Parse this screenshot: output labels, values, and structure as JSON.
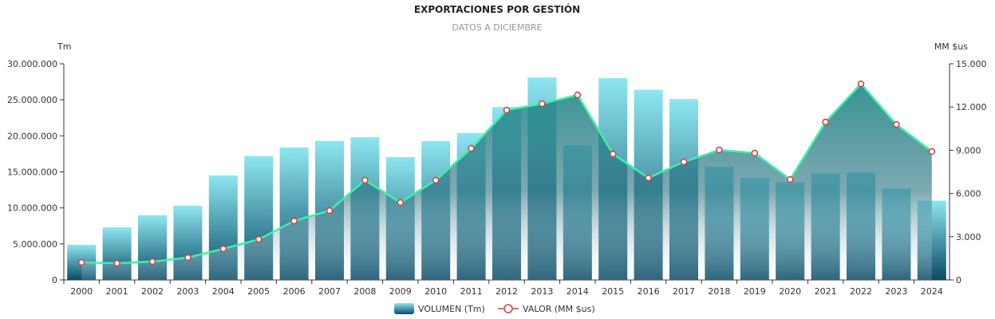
{
  "chart_data": {
    "type": "bar",
    "title": "EXPORTACIONES POR GESTIÓN",
    "subtitle": "DATOS A DICIEMBRE",
    "ylabel_left": "Tm",
    "ylabel_right": "MM $us",
    "ylim_left": [
      0,
      30000000
    ],
    "ylim_right": [
      0,
      15000
    ],
    "yticks_left": [
      "0",
      "5.000.000",
      "10.000.000",
      "15.000.000",
      "20.000.000",
      "25.000.000",
      "30.000.000"
    ],
    "yticks_right": [
      "0",
      "3.000",
      "6.000",
      "9.000",
      "12.000",
      "15.000"
    ],
    "categories": [
      "2000",
      "2001",
      "2002",
      "2003",
      "2004",
      "2005",
      "2006",
      "2007",
      "2008",
      "2009",
      "2010",
      "2011",
      "2012",
      "2013",
      "2014",
      "2015",
      "2016",
      "2017",
      "2018",
      "2019",
      "2020",
      "2021",
      "2022",
      "2023",
      "2024"
    ],
    "series": [
      {
        "name": "VOLUMEN (Tm)",
        "type": "bar",
        "axis": "left",
        "values": [
          4870000,
          7300000,
          8970000,
          10300000,
          14500000,
          17200000,
          18400000,
          19300000,
          19800000,
          17050000,
          19300000,
          20400000,
          24000000,
          28100000,
          18700000,
          28000000,
          26400000,
          25100000,
          15700000,
          14200000,
          13600000,
          14800000,
          14900000,
          12700000,
          11000000
        ]
      },
      {
        "name": "VALOR (MM $us)",
        "type": "line-area",
        "axis": "right",
        "values": [
          1220,
          1160,
          1270,
          1550,
          2160,
          2820,
          4090,
          4810,
          6920,
          5370,
          6920,
          9130,
          11790,
          12230,
          12840,
          8740,
          7080,
          8190,
          9020,
          8800,
          6970,
          10960,
          13610,
          10790,
          8910
        ]
      }
    ],
    "legend_position": "bottom-center",
    "colors": {
      "bar_top": "#8ee6f0",
      "bar_bottom": "#0a4a66",
      "line": "#3ff0a8",
      "marker": "#d04040",
      "area": "#1f7f80"
    }
  }
}
